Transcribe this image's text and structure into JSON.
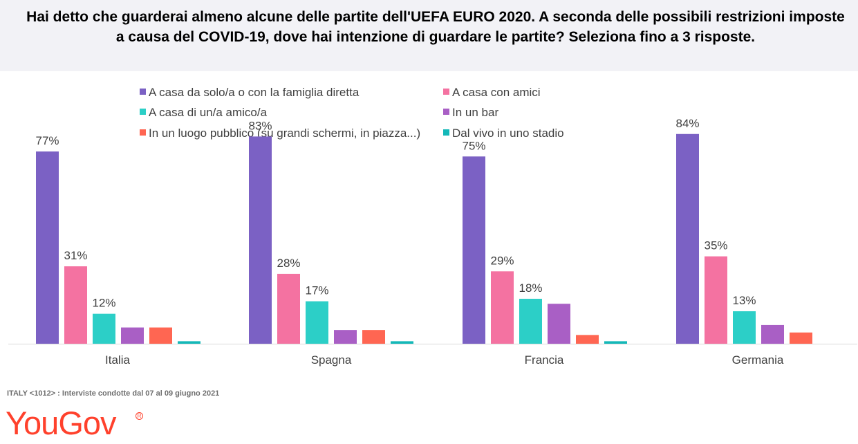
{
  "header": {
    "title": "Hai detto che guarderai almeno alcune delle partite dell'UEFA EURO 2020. A seconda delle possibili restrizioni imposte a causa del COVID-19, dove hai intenzione di guardare le partite? Seleziona fino a 3 risposte."
  },
  "footer": {
    "note": "ITALY <1012> : Interviste condotte dal 07 al 09 giugno 2021",
    "logo": "YouGov",
    "logo_mark": "R"
  },
  "chart_data": {
    "type": "bar",
    "categories": [
      "Italia",
      "Spagna",
      "Francia",
      "Germania"
    ],
    "ylim": [
      0,
      100
    ],
    "grid": false,
    "legend_position": "top",
    "series": [
      {
        "name": "A casa da solo/a o con la famiglia diretta",
        "color": "#7b61c4",
        "values": [
          77,
          83,
          75,
          84
        ],
        "labels": [
          "77%",
          "83%",
          "75%",
          "84%"
        ]
      },
      {
        "name": "A casa con amici",
        "color": "#f472a1",
        "values": [
          31,
          28,
          29,
          35
        ],
        "labels": [
          "31%",
          "28%",
          "29%",
          "35%"
        ]
      },
      {
        "name": "A casa di un/a amico/a",
        "color": "#2ccfc7",
        "values": [
          12,
          17,
          18,
          13
        ],
        "labels": [
          "12%",
          "17%",
          "18%",
          "13%"
        ]
      },
      {
        "name": "In un bar",
        "color": "#a95fc5",
        "values": [
          6.5,
          5.5,
          16,
          7.5
        ],
        "labels": [
          "",
          "",
          "",
          ""
        ]
      },
      {
        "name": "In un luogo pubblico (su grandi schermi, in piazza...)",
        "color": "#ff6652",
        "values": [
          6.5,
          5.5,
          3.5,
          4.5
        ],
        "labels": [
          "",
          "",
          "",
          ""
        ]
      },
      {
        "name": "Dal vivo in uno stadio",
        "color": "#14b8b8",
        "values": [
          1,
          1,
          1,
          0
        ],
        "labels": [
          "",
          "",
          "",
          ""
        ]
      }
    ]
  }
}
